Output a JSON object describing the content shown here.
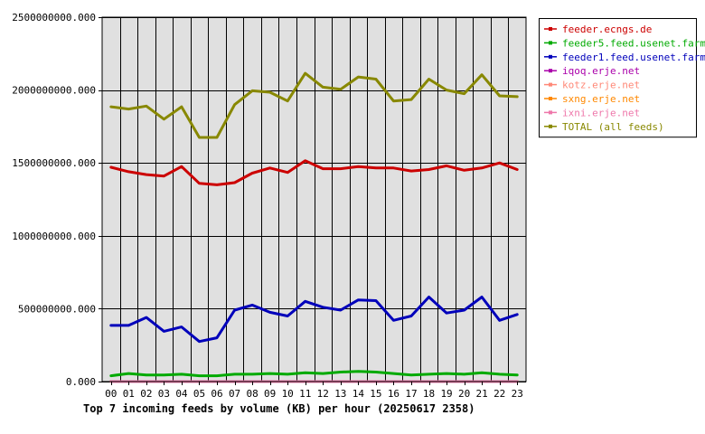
{
  "chart_data": {
    "type": "line",
    "title": "Top 7 incoming feeds by volume (KB) per hour (20250617 2358)",
    "xlabel": "",
    "ylabel": "",
    "x": [
      "00",
      "01",
      "02",
      "03",
      "04",
      "05",
      "06",
      "07",
      "08",
      "09",
      "10",
      "11",
      "12",
      "13",
      "14",
      "15",
      "16",
      "17",
      "18",
      "19",
      "20",
      "21",
      "22",
      "23"
    ],
    "ylim": [
      0,
      2500000000
    ],
    "yticks": [
      "0.000",
      "500000000.000",
      "1000000000.000",
      "1500000000.000",
      "2000000000.000",
      "2500000000.000"
    ],
    "grid": true,
    "legend_position": "top-right",
    "series": [
      {
        "name": "feeder.ecngs.de",
        "color": "#cc0000",
        "values": [
          1470000000,
          1440000000,
          1420000000,
          1410000000,
          1475000000,
          1360000000,
          1350000000,
          1365000000,
          1430000000,
          1465000000,
          1435000000,
          1515000000,
          1460000000,
          1460000000,
          1475000000,
          1465000000,
          1465000000,
          1445000000,
          1455000000,
          1480000000,
          1450000000,
          1465000000,
          1500000000,
          1455000000
        ]
      },
      {
        "name": "feeder5.feed.usenet.farm",
        "color": "#00aa00",
        "values": [
          40000000,
          55000000,
          45000000,
          45000000,
          50000000,
          40000000,
          40000000,
          50000000,
          50000000,
          55000000,
          50000000,
          60000000,
          55000000,
          65000000,
          70000000,
          65000000,
          55000000,
          45000000,
          50000000,
          55000000,
          50000000,
          60000000,
          50000000,
          45000000
        ]
      },
      {
        "name": "feeder1.feed.usenet.farm",
        "color": "#0000bb",
        "values": [
          385000000,
          385000000,
          440000000,
          345000000,
          375000000,
          275000000,
          300000000,
          490000000,
          525000000,
          475000000,
          450000000,
          550000000,
          510000000,
          490000000,
          560000000,
          555000000,
          420000000,
          450000000,
          580000000,
          470000000,
          490000000,
          580000000,
          420000000,
          460000000
        ]
      },
      {
        "name": "iqoq.erje.net",
        "color": "#aa00aa",
        "values": [
          0,
          0,
          0,
          0,
          0,
          0,
          0,
          0,
          0,
          0,
          0,
          0,
          0,
          0,
          0,
          0,
          0,
          0,
          0,
          0,
          0,
          0,
          0,
          0
        ]
      },
      {
        "name": "kotz.erje.net",
        "color": "#ff8877",
        "values": [
          0,
          0,
          0,
          0,
          0,
          0,
          0,
          0,
          0,
          0,
          0,
          0,
          0,
          0,
          0,
          0,
          0,
          0,
          0,
          0,
          0,
          0,
          0,
          0
        ]
      },
      {
        "name": "sxng.erje.net",
        "color": "#ff8800",
        "values": [
          0,
          0,
          0,
          0,
          0,
          0,
          0,
          0,
          0,
          0,
          0,
          0,
          0,
          0,
          0,
          0,
          0,
          0,
          0,
          0,
          0,
          0,
          0,
          0
        ]
      },
      {
        "name": "ixni.erje.net",
        "color": "#ee77aa",
        "values": [
          0,
          0,
          0,
          0,
          0,
          0,
          0,
          0,
          0,
          0,
          0,
          0,
          0,
          0,
          0,
          0,
          0,
          0,
          0,
          0,
          0,
          0,
          0,
          0
        ]
      },
      {
        "name": "TOTAL (all feeds)",
        "color": "#888800",
        "values": [
          1885000000,
          1870000000,
          1890000000,
          1800000000,
          1885000000,
          1675000000,
          1675000000,
          1900000000,
          1995000000,
          1985000000,
          1925000000,
          2115000000,
          2020000000,
          2005000000,
          2090000000,
          2075000000,
          1925000000,
          1935000000,
          2075000000,
          2000000000,
          1975000000,
          2105000000,
          1960000000,
          1955000000
        ]
      }
    ]
  }
}
